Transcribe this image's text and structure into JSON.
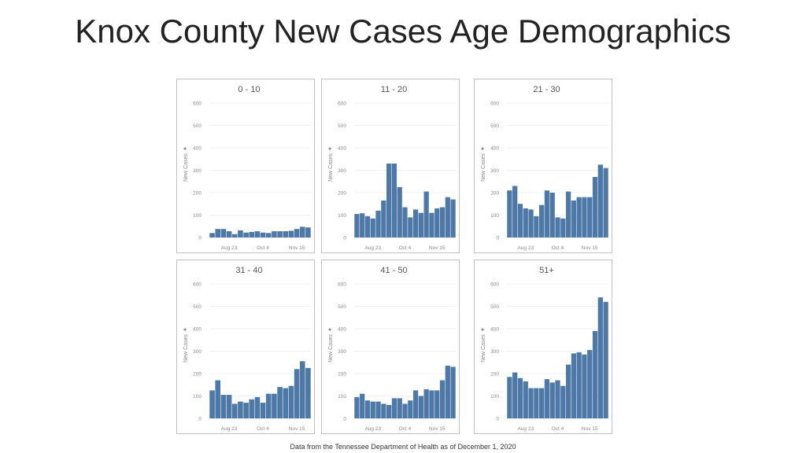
{
  "title": "Knox County New Cases Age Demographics",
  "footnote": "Data from the Tennessee Department of Health as of December 1, 2020",
  "colors": {
    "bar": "#4e79a7",
    "grid": "#ebebeb",
    "axis_text": "#8a8a8a",
    "panel_title": "#555555"
  },
  "chart_data": [
    {
      "type": "bar",
      "title": "0 - 10",
      "ylabel": "New Cases",
      "yticks": [
        0,
        100,
        200,
        300,
        400,
        500,
        600
      ],
      "ylim": [
        0,
        600
      ],
      "xtick_labels": [
        "Aug 23",
        "Oct 4",
        "Nov 15"
      ],
      "xtick_positions": [
        3.5,
        9.5,
        15.5
      ],
      "values": [
        20,
        38,
        38,
        28,
        15,
        32,
        22,
        25,
        28,
        22,
        20,
        28,
        28,
        28,
        30,
        38,
        48,
        45
      ]
    },
    {
      "type": "bar",
      "title": "11 - 20",
      "ylabel": "New Cases",
      "yticks": [
        0,
        100,
        200,
        300,
        400,
        500,
        600
      ],
      "ylim": [
        0,
        600
      ],
      "xtick_labels": [
        "Aug 23",
        "Oct 4",
        "Nov 15"
      ],
      "xtick_positions": [
        3.5,
        9.5,
        15.5
      ],
      "values": [
        105,
        108,
        95,
        85,
        120,
        165,
        330,
        330,
        225,
        135,
        90,
        125,
        110,
        205,
        110,
        130,
        135,
        180,
        170
      ]
    },
    {
      "type": "bar",
      "title": "21 - 30",
      "ylabel": "New Cases",
      "yticks": [
        0,
        100,
        200,
        300,
        400,
        500,
        600
      ],
      "ylim": [
        0,
        600
      ],
      "xtick_labels": [
        "Aug 23",
        "Oct 4",
        "Nov 15"
      ],
      "xtick_positions": [
        3.5,
        9.5,
        15.5
      ],
      "values": [
        210,
        230,
        150,
        130,
        125,
        95,
        145,
        210,
        200,
        90,
        85,
        205,
        165,
        180,
        180,
        180,
        270,
        325,
        310
      ]
    },
    {
      "type": "bar",
      "title": "31 - 40",
      "ylabel": "New Cases",
      "yticks": [
        0,
        100,
        200,
        300,
        400,
        500,
        600
      ],
      "ylim": [
        0,
        600
      ],
      "xtick_labels": [
        "Aug 23",
        "Oct 4",
        "Nov 15"
      ],
      "xtick_positions": [
        3.5,
        9.5,
        15.5
      ],
      "values": [
        125,
        170,
        105,
        105,
        65,
        75,
        70,
        85,
        95,
        70,
        110,
        110,
        140,
        135,
        145,
        220,
        255,
        225
      ]
    },
    {
      "type": "bar",
      "title": "41 - 50",
      "ylabel": "New Cases",
      "yticks": [
        0,
        100,
        200,
        300,
        400,
        500,
        600
      ],
      "ylim": [
        0,
        600
      ],
      "xtick_labels": [
        "Aug 23",
        "Oct 4",
        "Nov 15"
      ],
      "xtick_positions": [
        3.5,
        9.5,
        15.5
      ],
      "values": [
        95,
        110,
        80,
        75,
        75,
        65,
        60,
        90,
        90,
        65,
        80,
        125,
        100,
        130,
        125,
        125,
        170,
        235,
        230
      ]
    },
    {
      "type": "bar",
      "title": "51+",
      "ylabel": "New Cases",
      "yticks": [
        0,
        100,
        200,
        300,
        400,
        500,
        600
      ],
      "ylim": [
        0,
        600
      ],
      "xtick_labels": [
        "Aug 23",
        "Oct 4",
        "Nov 15"
      ],
      "xtick_positions": [
        3.5,
        9.5,
        15.5
      ],
      "values": [
        185,
        205,
        180,
        165,
        135,
        135,
        135,
        175,
        160,
        170,
        145,
        240,
        290,
        295,
        285,
        305,
        390,
        540,
        520
      ]
    }
  ]
}
